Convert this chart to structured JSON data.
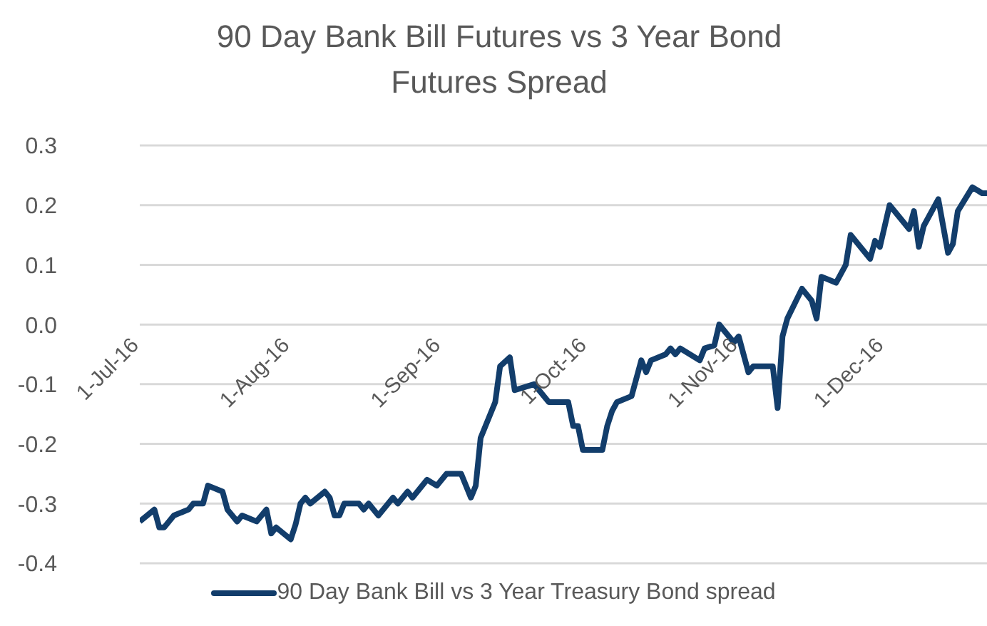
{
  "chart_data": {
    "type": "line",
    "title": "90 Day Bank Bill Futures vs 3 Year Bond Futures Spread",
    "x": [
      "2016-07-01",
      "2016-07-04",
      "2016-07-05",
      "2016-07-06",
      "2016-07-08",
      "2016-07-11",
      "2016-07-12",
      "2016-07-14",
      "2016-07-15",
      "2016-07-18",
      "2016-07-19",
      "2016-07-21",
      "2016-07-22",
      "2016-07-25",
      "2016-07-27",
      "2016-07-28",
      "2016-07-29",
      "2016-08-01",
      "2016-08-02",
      "2016-08-03",
      "2016-08-04",
      "2016-08-05",
      "2016-08-08",
      "2016-08-09",
      "2016-08-10",
      "2016-08-11",
      "2016-08-12",
      "2016-08-15",
      "2016-08-16",
      "2016-08-17",
      "2016-08-19",
      "2016-08-22",
      "2016-08-23",
      "2016-08-25",
      "2016-08-26",
      "2016-08-29",
      "2016-08-31",
      "2016-09-02",
      "2016-09-05",
      "2016-09-07",
      "2016-09-08",
      "2016-09-09",
      "2016-09-12",
      "2016-09-13",
      "2016-09-15",
      "2016-09-16",
      "2016-09-20",
      "2016-09-23",
      "2016-09-27",
      "2016-09-28",
      "2016-09-29",
      "2016-09-30",
      "2016-10-04",
      "2016-10-05",
      "2016-10-06",
      "2016-10-07",
      "2016-10-10",
      "2016-10-12",
      "2016-10-13",
      "2016-10-14",
      "2016-10-17",
      "2016-10-18",
      "2016-10-19",
      "2016-10-20",
      "2016-10-24",
      "2016-10-25",
      "2016-10-27",
      "2016-10-28",
      "2016-10-31",
      "2016-11-01",
      "2016-11-03",
      "2016-11-04",
      "2016-11-08",
      "2016-11-09",
      "2016-11-10",
      "2016-11-11",
      "2016-11-14",
      "2016-11-16",
      "2016-11-17",
      "2016-11-18",
      "2016-11-21",
      "2016-11-23",
      "2016-11-24",
      "2016-11-28",
      "2016-11-29",
      "2016-11-30",
      "2016-12-02",
      "2016-12-06",
      "2016-12-07",
      "2016-12-08",
      "2016-12-09",
      "2016-12-12",
      "2016-12-14",
      "2016-12-15",
      "2016-12-16",
      "2016-12-19",
      "2016-12-21",
      "2016-12-22"
    ],
    "series": [
      {
        "name": "90 Day Bank Bill vs 3 Year Treasury Bond spread",
        "color": "#123d6b",
        "values": [
          -0.33,
          -0.31,
          -0.34,
          -0.34,
          -0.32,
          -0.31,
          -0.3,
          -0.3,
          -0.27,
          -0.28,
          -0.31,
          -0.33,
          -0.32,
          -0.33,
          -0.31,
          -0.35,
          -0.34,
          -0.36,
          -0.335,
          -0.3,
          -0.29,
          -0.3,
          -0.28,
          -0.29,
          -0.32,
          -0.32,
          -0.3,
          -0.3,
          -0.31,
          -0.3,
          -0.32,
          -0.29,
          -0.3,
          -0.28,
          -0.29,
          -0.26,
          -0.27,
          -0.25,
          -0.25,
          -0.29,
          -0.27,
          -0.19,
          -0.13,
          -0.07,
          -0.055,
          -0.11,
          -0.1,
          -0.13,
          -0.13,
          -0.17,
          -0.17,
          -0.21,
          -0.21,
          -0.17,
          -0.145,
          -0.13,
          -0.12,
          -0.06,
          -0.08,
          -0.06,
          -0.05,
          -0.04,
          -0.05,
          -0.04,
          -0.06,
          -0.04,
          -0.035,
          0.0,
          -0.03,
          -0.02,
          -0.08,
          -0.07,
          -0.07,
          -0.14,
          -0.02,
          0.01,
          0.06,
          0.04,
          0.01,
          0.08,
          0.07,
          0.1,
          0.15,
          0.11,
          0.14,
          0.13,
          0.2,
          0.16,
          0.19,
          0.13,
          0.165,
          0.21,
          0.12,
          0.135,
          0.19,
          0.23,
          0.22,
          0.22
        ]
      }
    ],
    "xlim": [
      "2016-07-01",
      "2016-12-22"
    ],
    "xticks": [
      {
        "value": "2016-07-01",
        "label": "1-Jul-16"
      },
      {
        "value": "2016-08-01",
        "label": "1-Aug-16"
      },
      {
        "value": "2016-09-01",
        "label": "1-Sep-16"
      },
      {
        "value": "2016-10-01",
        "label": "1-Oct-16"
      },
      {
        "value": "2016-11-01",
        "label": "1-Nov-16"
      },
      {
        "value": "2016-12-01",
        "label": "1-Dec-16"
      }
    ],
    "ylim": [
      -0.4,
      0.3
    ],
    "yticks": [
      -0.4,
      -0.3,
      -0.2,
      -0.1,
      {
        "value": 0,
        "label": "0.0"
      },
      0.1,
      0.2,
      0.3
    ],
    "grid": "y",
    "legend": "bottom",
    "marker": "none",
    "line_style": "solid"
  }
}
